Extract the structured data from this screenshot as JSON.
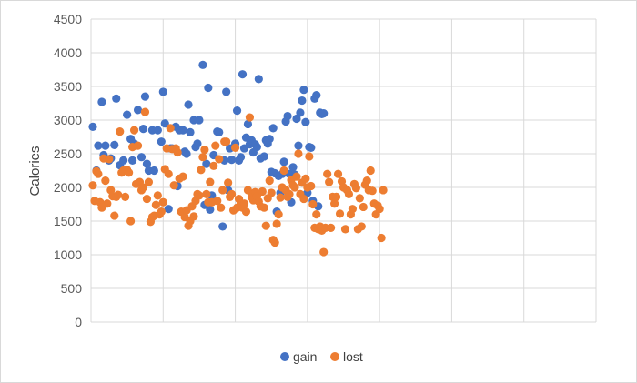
{
  "chart_data": {
    "type": "scatter",
    "title": "",
    "xlabel": "",
    "ylabel": "Calories",
    "ylim": [
      0,
      4500
    ],
    "yticks": [
      0,
      500,
      1000,
      1500,
      2000,
      2500,
      3000,
      3500,
      4000,
      4500
    ],
    "xlim": [
      0,
      280
    ],
    "x_gridlines": [
      0,
      40,
      80,
      120,
      160,
      200,
      240,
      280
    ],
    "grid": "both",
    "legend_position": "bottom",
    "series": [
      {
        "name": "gain",
        "color": "#4472C4",
        "points": [
          [
            1,
            2900
          ],
          [
            3,
            2250
          ],
          [
            4,
            2620
          ],
          [
            6,
            3270
          ],
          [
            7,
            2480
          ],
          [
            8,
            2620
          ],
          [
            10,
            2400
          ],
          [
            11,
            2430
          ],
          [
            13,
            2630
          ],
          [
            14,
            3320
          ],
          [
            16,
            2330
          ],
          [
            18,
            2400
          ],
          [
            20,
            3080
          ],
          [
            22,
            2720
          ],
          [
            23,
            2400
          ],
          [
            24,
            2650
          ],
          [
            26,
            3150
          ],
          [
            28,
            2450
          ],
          [
            29,
            2870
          ],
          [
            30,
            3350
          ],
          [
            31,
            2350
          ],
          [
            32,
            2250
          ],
          [
            34,
            2850
          ],
          [
            35,
            2250
          ],
          [
            37,
            2850
          ],
          [
            39,
            2680
          ],
          [
            40,
            3420
          ],
          [
            41,
            2950
          ],
          [
            43,
            1680
          ],
          [
            44,
            2580
          ],
          [
            45,
            2580
          ],
          [
            47,
            2900
          ],
          [
            48,
            2020
          ],
          [
            49,
            2850
          ],
          [
            51,
            2850
          ],
          [
            52,
            2530
          ],
          [
            53,
            2500
          ],
          [
            54,
            3230
          ],
          [
            55,
            2820
          ],
          [
            57,
            3000
          ],
          [
            58,
            2600
          ],
          [
            59,
            2650
          ],
          [
            60,
            3000
          ],
          [
            62,
            3820
          ],
          [
            63,
            1740
          ],
          [
            64,
            2350
          ],
          [
            65,
            3480
          ],
          [
            66,
            1670
          ],
          [
            67,
            1880
          ],
          [
            68,
            2480
          ],
          [
            70,
            2830
          ],
          [
            71,
            2820
          ],
          [
            73,
            1420
          ],
          [
            74,
            2400
          ],
          [
            75,
            3420
          ],
          [
            76,
            1960
          ],
          [
            77,
            2580
          ],
          [
            78,
            2410
          ],
          [
            80,
            2650
          ],
          [
            81,
            3140
          ],
          [
            82,
            2400
          ],
          [
            83,
            2450
          ],
          [
            84,
            3680
          ],
          [
            85,
            2580
          ],
          [
            86,
            2740
          ],
          [
            87,
            2940
          ],
          [
            88,
            2640
          ],
          [
            89,
            2700
          ],
          [
            90,
            2520
          ],
          [
            91,
            2640
          ],
          [
            92,
            2600
          ],
          [
            93,
            3610
          ],
          [
            94,
            2430
          ],
          [
            96,
            2460
          ],
          [
            97,
            2700
          ],
          [
            98,
            2650
          ],
          [
            99,
            2720
          ],
          [
            100,
            2230
          ],
          [
            101,
            2880
          ],
          [
            102,
            2210
          ],
          [
            103,
            1640
          ],
          [
            104,
            2170
          ],
          [
            105,
            1920
          ],
          [
            106,
            2200
          ],
          [
            107,
            2380
          ],
          [
            108,
            2980
          ],
          [
            109,
            3060
          ],
          [
            110,
            2200
          ],
          [
            111,
            1780
          ],
          [
            112,
            2300
          ],
          [
            113,
            2190
          ],
          [
            114,
            3020
          ],
          [
            115,
            2620
          ],
          [
            116,
            3110
          ],
          [
            117,
            3290
          ],
          [
            118,
            3450
          ],
          [
            119,
            2970
          ],
          [
            120,
            1920
          ],
          [
            121,
            2600
          ],
          [
            122,
            2590
          ],
          [
            123,
            1800
          ],
          [
            124,
            3320
          ],
          [
            125,
            3370
          ],
          [
            126,
            1720
          ],
          [
            127,
            3110
          ],
          [
            128,
            3090
          ],
          [
            129,
            3100
          ]
        ]
      },
      {
        "name": "lost",
        "color": "#ED7D31",
        "points": [
          [
            1,
            2030
          ],
          [
            2,
            1800
          ],
          [
            3,
            2240
          ],
          [
            4,
            2200
          ],
          [
            5,
            1780
          ],
          [
            6,
            1700
          ],
          [
            7,
            2430
          ],
          [
            8,
            2100
          ],
          [
            9,
            1760
          ],
          [
            10,
            2420
          ],
          [
            11,
            1960
          ],
          [
            12,
            1870
          ],
          [
            13,
            1580
          ],
          [
            14,
            1860
          ],
          [
            15,
            1890
          ],
          [
            16,
            2830
          ],
          [
            17,
            2220
          ],
          [
            18,
            2250
          ],
          [
            19,
            1860
          ],
          [
            20,
            2260
          ],
          [
            21,
            2220
          ],
          [
            22,
            1500
          ],
          [
            23,
            2600
          ],
          [
            24,
            2850
          ],
          [
            25,
            2050
          ],
          [
            26,
            2620
          ],
          [
            27,
            2080
          ],
          [
            28,
            1960
          ],
          [
            29,
            2000
          ],
          [
            30,
            3120
          ],
          [
            31,
            1830
          ],
          [
            32,
            2080
          ],
          [
            33,
            1490
          ],
          [
            34,
            1560
          ],
          [
            35,
            1580
          ],
          [
            36,
            1740
          ],
          [
            37,
            1880
          ],
          [
            38,
            1600
          ],
          [
            39,
            1640
          ],
          [
            40,
            1780
          ],
          [
            41,
            2270
          ],
          [
            42,
            2580
          ],
          [
            43,
            2200
          ],
          [
            44,
            2880
          ],
          [
            45,
            2570
          ],
          [
            46,
            2030
          ],
          [
            47,
            2580
          ],
          [
            48,
            2520
          ],
          [
            49,
            2130
          ],
          [
            50,
            1640
          ],
          [
            51,
            2160
          ],
          [
            52,
            1560
          ],
          [
            53,
            1660
          ],
          [
            54,
            1430
          ],
          [
            55,
            1500
          ],
          [
            56,
            1720
          ],
          [
            57,
            1570
          ],
          [
            58,
            1800
          ],
          [
            59,
            1900
          ],
          [
            60,
            1880
          ],
          [
            61,
            2260
          ],
          [
            62,
            2450
          ],
          [
            63,
            2560
          ],
          [
            64,
            1900
          ],
          [
            65,
            1780
          ],
          [
            66,
            2080
          ],
          [
            67,
            1780
          ],
          [
            68,
            2320
          ],
          [
            69,
            2620
          ],
          [
            70,
            1800
          ],
          [
            71,
            2420
          ],
          [
            72,
            1700
          ],
          [
            73,
            1960
          ],
          [
            74,
            2680
          ],
          [
            75,
            2680
          ],
          [
            76,
            2070
          ],
          [
            77,
            1860
          ],
          [
            78,
            1900
          ],
          [
            79,
            1660
          ],
          [
            80,
            2590
          ],
          [
            81,
            1700
          ],
          [
            82,
            1830
          ],
          [
            83,
            1770
          ],
          [
            84,
            1700
          ],
          [
            85,
            1760
          ],
          [
            86,
            1640
          ],
          [
            87,
            1960
          ],
          [
            88,
            3040
          ],
          [
            89,
            1860
          ],
          [
            90,
            1810
          ],
          [
            91,
            1930
          ],
          [
            92,
            1870
          ],
          [
            93,
            1790
          ],
          [
            94,
            1720
          ],
          [
            95,
            1940
          ],
          [
            96,
            1700
          ],
          [
            97,
            1430
          ],
          [
            98,
            1840
          ],
          [
            99,
            2100
          ],
          [
            100,
            1920
          ],
          [
            101,
            1220
          ],
          [
            102,
            1180
          ],
          [
            103,
            1460
          ],
          [
            104,
            1600
          ],
          [
            105,
            1850
          ],
          [
            106,
            2000
          ],
          [
            107,
            2250
          ],
          [
            108,
            1960
          ],
          [
            109,
            1860
          ],
          [
            110,
            1900
          ],
          [
            111,
            2110
          ],
          [
            112,
            2030
          ],
          [
            113,
            2000
          ],
          [
            114,
            2160
          ],
          [
            115,
            2500
          ],
          [
            116,
            1900
          ],
          [
            117,
            2070
          ],
          [
            118,
            1830
          ],
          [
            119,
            2130
          ],
          [
            120,
            2000
          ],
          [
            121,
            2460
          ],
          [
            122,
            2020
          ],
          [
            123,
            1750
          ],
          [
            124,
            1400
          ],
          [
            125,
            1600
          ],
          [
            126,
            1380
          ],
          [
            127,
            1420
          ],
          [
            128,
            1360
          ],
          [
            129,
            1040
          ],
          [
            130,
            1400
          ],
          [
            131,
            2200
          ],
          [
            132,
            2080
          ],
          [
            133,
            1400
          ],
          [
            134,
            1860
          ],
          [
            135,
            1760
          ],
          [
            136,
            1860
          ],
          [
            137,
            2200
          ],
          [
            138,
            1610
          ],
          [
            139,
            2090
          ],
          [
            140,
            2000
          ],
          [
            141,
            1380
          ],
          [
            142,
            1960
          ],
          [
            143,
            1900
          ],
          [
            144,
            1600
          ],
          [
            145,
            1680
          ],
          [
            146,
            2050
          ],
          [
            147,
            1990
          ],
          [
            148,
            1380
          ],
          [
            149,
            1840
          ],
          [
            150,
            1420
          ],
          [
            151,
            1710
          ],
          [
            152,
            2040
          ],
          [
            153,
            2100
          ],
          [
            154,
            1960
          ],
          [
            155,
            2250
          ],
          [
            156,
            1950
          ],
          [
            157,
            1760
          ],
          [
            158,
            1600
          ],
          [
            159,
            1730
          ],
          [
            160,
            1680
          ],
          [
            161,
            1250
          ],
          [
            162,
            1960
          ]
        ]
      }
    ]
  }
}
